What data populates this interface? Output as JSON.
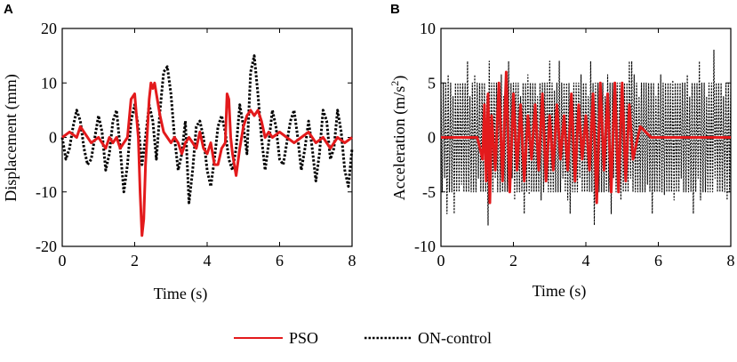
{
  "colors": {
    "pso": "#e31a1c",
    "on_control": "#000000"
  },
  "legend": {
    "pso": "PSO",
    "on_control": "ON-control"
  },
  "chart_data": [
    {
      "panel": "A",
      "type": "line",
      "xlabel": "Time (s)",
      "ylabel": "Displacement (mm)",
      "xlim": [
        0,
        8
      ],
      "ylim": [
        -20,
        20
      ],
      "xticks": [
        "0",
        "2",
        "4",
        "6",
        "8"
      ],
      "yticks": [
        "-20",
        "-10",
        "0",
        "10",
        "20"
      ],
      "series": [
        {
          "name": "ON-control",
          "style": "dotted",
          "x": [
            0,
            0.1,
            0.2,
            0.3,
            0.4,
            0.5,
            0.6,
            0.7,
            0.8,
            0.9,
            1.0,
            1.1,
            1.2,
            1.3,
            1.4,
            1.5,
            1.6,
            1.7,
            1.8,
            1.9,
            2.0,
            2.1,
            2.2,
            2.3,
            2.4,
            2.5,
            2.6,
            2.7,
            2.8,
            2.9,
            3.0,
            3.1,
            3.2,
            3.3,
            3.4,
            3.5,
            3.6,
            3.7,
            3.8,
            3.9,
            4.0,
            4.1,
            4.2,
            4.3,
            4.4,
            4.5,
            4.6,
            4.7,
            4.8,
            4.9,
            5.0,
            5.1,
            5.2,
            5.3,
            5.4,
            5.5,
            5.6,
            5.7,
            5.8,
            5.9,
            6.0,
            6.1,
            6.2,
            6.3,
            6.4,
            6.5,
            6.6,
            6.7,
            6.8,
            6.9,
            7.0,
            7.1,
            7.2,
            7.3,
            7.4,
            7.5,
            7.6,
            7.7,
            7.8,
            7.9,
            8.0
          ],
          "y": [
            0,
            -4,
            -2,
            2,
            5,
            3,
            -2,
            -5,
            -4,
            0,
            4,
            1,
            -6,
            -3,
            3,
            5,
            -2,
            -10,
            -5,
            3,
            6,
            2,
            -5,
            0,
            6,
            3,
            -4,
            5,
            12,
            13,
            8,
            0,
            -6,
            -3,
            3,
            -12,
            -6,
            2,
            3,
            0,
            -6,
            -9,
            -4,
            2,
            4,
            1,
            -4,
            -6,
            -2,
            6,
            2,
            -3,
            12,
            15,
            8,
            0,
            -6,
            -1,
            5,
            2,
            -4,
            -5,
            -1,
            3,
            5,
            0,
            -6,
            -2,
            3,
            -2,
            -8,
            -3,
            5,
            3,
            -4,
            -2,
            5,
            1,
            -6,
            -9,
            -2
          ]
        },
        {
          "name": "PSO",
          "style": "solid",
          "x": [
            0,
            0.2,
            0.4,
            0.5,
            0.6,
            0.8,
            1.0,
            1.2,
            1.3,
            1.4,
            1.5,
            1.6,
            1.7,
            1.8,
            1.9,
            2.0,
            2.05,
            2.1,
            2.15,
            2.2,
            2.25,
            2.3,
            2.4,
            2.45,
            2.5,
            2.55,
            2.6,
            2.7,
            2.8,
            2.9,
            3.0,
            3.1,
            3.2,
            3.3,
            3.4,
            3.5,
            3.6,
            3.7,
            3.8,
            3.9,
            4.0,
            4.1,
            4.2,
            4.3,
            4.4,
            4.5,
            4.55,
            4.6,
            4.65,
            4.7,
            4.8,
            4.9,
            5.0,
            5.1,
            5.2,
            5.3,
            5.4,
            5.5,
            5.6,
            5.7,
            5.8,
            6.0,
            6.2,
            6.4,
            6.6,
            6.8,
            7.0,
            7.2,
            7.4,
            7.6,
            7.8,
            8.0
          ],
          "y": [
            0,
            1,
            0,
            2,
            1,
            -1,
            0,
            -2,
            0,
            -1,
            0,
            -2,
            -1,
            0,
            7,
            8,
            4,
            0,
            -10,
            -18,
            -15,
            -5,
            7,
            10,
            9,
            10,
            8,
            4,
            1,
            0,
            -1,
            0,
            -1,
            -3,
            -1,
            0,
            -1,
            -2,
            1,
            -2,
            -3,
            -1,
            -5,
            -5,
            -2,
            -1,
            8,
            7,
            0,
            -3,
            -7,
            -2,
            2,
            4,
            5,
            4,
            5,
            3,
            0,
            1,
            0,
            1,
            0,
            -1,
            0,
            1,
            -1,
            0,
            -2,
            0,
            -1,
            0
          ]
        }
      ]
    },
    {
      "panel": "B",
      "type": "line",
      "xlabel": "Time (s)",
      "ylabel": "Acceleration (m/s",
      "ylabel_sup": "2",
      "ylabel_close": ")",
      "xlim": [
        0,
        8
      ],
      "ylim": [
        -10,
        10
      ],
      "xticks": [
        "0",
        "2",
        "4",
        "6",
        "8"
      ],
      "yticks": [
        "-10",
        "-5",
        "0",
        "5",
        "10"
      ],
      "series": [
        {
          "name": "ON-control",
          "style": "dotted",
          "envelope": {
            "upper": 5,
            "lower": -5,
            "peak_upper": 7,
            "peak_lower": -7
          }
        },
        {
          "name": "PSO",
          "style": "solid",
          "x": [
            0,
            0.5,
            1.0,
            1.15,
            1.2,
            1.25,
            1.3,
            1.35,
            1.4,
            1.5,
            1.6,
            1.7,
            1.8,
            1.9,
            2.0,
            2.1,
            2.2,
            2.3,
            2.4,
            2.5,
            2.6,
            2.7,
            2.8,
            2.9,
            3.0,
            3.1,
            3.2,
            3.3,
            3.4,
            3.5,
            3.6,
            3.7,
            3.8,
            3.9,
            4.0,
            4.1,
            4.2,
            4.3,
            4.4,
            4.5,
            4.6,
            4.7,
            4.8,
            4.9,
            5.0,
            5.1,
            5.2,
            5.3,
            5.5,
            5.8,
            6.0,
            6.5,
            7.0,
            7.5,
            8.0
          ],
          "y": [
            0,
            0,
            0,
            -2,
            3,
            -4,
            4,
            -6,
            2,
            -3,
            5,
            -4,
            6,
            -5,
            4,
            -3,
            3,
            -4,
            2,
            -2,
            3,
            -3,
            4,
            -4,
            2,
            -3,
            3,
            -2,
            2,
            -3,
            4,
            -4,
            3,
            -2,
            2,
            -3,
            4,
            -6,
            5,
            -3,
            4,
            -5,
            5,
            -5,
            5,
            -4,
            3,
            -2,
            1,
            0,
            0,
            0,
            0,
            0,
            0
          ]
        }
      ]
    }
  ]
}
